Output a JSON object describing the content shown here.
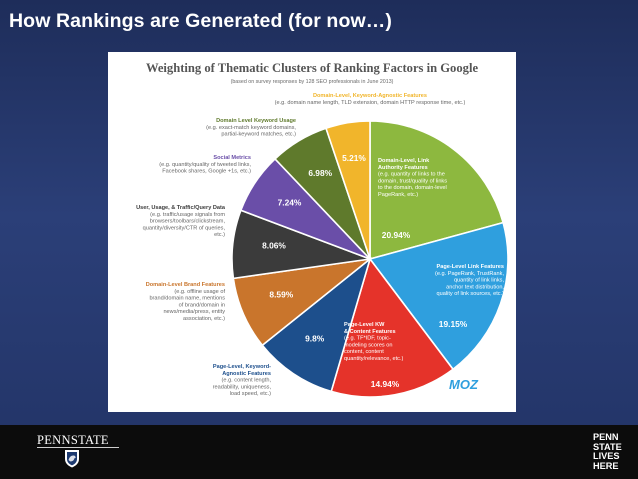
{
  "slide": {
    "title": "How Rankings are Generated (for now…)"
  },
  "chart_data": {
    "type": "pie",
    "title": "Weighting of Thematic Clusters of Ranking Factors in Google",
    "subtitle": "(based on survey responses by 128 SEO professionals in June 2013)",
    "brand": "MOZ",
    "slices": [
      {
        "label": "Domain-Level, Link Authority Features",
        "desc": [
          "(e.g. quantity of links to the",
          "domain, trust/quality of links",
          "to the domain, domain-level",
          "PageRank, etc.)"
        ],
        "value": 20.94,
        "pct": "20.94%",
        "color": "#8db83f"
      },
      {
        "label": "Page-Level Link Features",
        "desc": [
          "(e.g. PageRank, TrustRank,",
          "quantity of link links,",
          "anchor text distribution,",
          "quality of link sources, etc.)"
        ],
        "value": 19.15,
        "pct": "19.15%",
        "color": "#2f9fde"
      },
      {
        "label": "Page-Level KW & Content Features",
        "desc": [
          "(e.g. TF*IDF, topic-",
          "modeling scores on",
          "content, content",
          "quantity/relevance, etc.)"
        ],
        "value": 14.94,
        "pct": "14.94%",
        "color": "#e5332a"
      },
      {
        "label": "Page-Level, Keyword-Agnostic Features",
        "desc": [
          "(e.g. content length,",
          "readability, uniqueness,",
          "load speed, etc.)"
        ],
        "value": 9.8,
        "pct": "9.8%",
        "color": "#1d4f8c"
      },
      {
        "label": "Domain-Level Brand Features",
        "desc": [
          "(e.g. offline usage of",
          "brand/domain name, mentions",
          "of brand/domain in",
          "news/media/press, entity",
          "association, etc.)"
        ],
        "value": 8.59,
        "pct": "8.59%",
        "color": "#c9752c"
      },
      {
        "label": "User, Usage, & Traffic/Query Data",
        "desc": [
          "(e.g. traffic/usage signals from",
          "browsers/toolbars/clickstream,",
          "quantity/diversity/CTR of queries,",
          "etc.)"
        ],
        "value": 8.06,
        "pct": "8.06%",
        "color": "#3b3b3b"
      },
      {
        "label": "Social Metrics",
        "desc": [
          "(e.g. quantity/quality of tweeted links,",
          "Facebook shares, Google +1s, etc.)"
        ],
        "value": 7.24,
        "pct": "7.24%",
        "color": "#6a4ea8"
      },
      {
        "label": "Domain Level Keyword Usage",
        "desc": [
          "(e.g. exact-match keyword domains,",
          "partial-keyword matches, etc.)"
        ],
        "value": 6.98,
        "pct": "6.98%",
        "color": "#5f7a2c"
      },
      {
        "label": "Domain-Level, Keyword-Agnostic Features",
        "desc": [
          "(e.g. domain name length, TLD extension, domain HTTP response time, etc.)"
        ],
        "value": 5.21,
        "pct": "5.21%",
        "color": "#f1b52b"
      }
    ]
  },
  "footer": {
    "logo_text": "PENNSTATE",
    "tagline": [
      "PENN",
      "STATE",
      "LIVES",
      "HERE"
    ]
  }
}
